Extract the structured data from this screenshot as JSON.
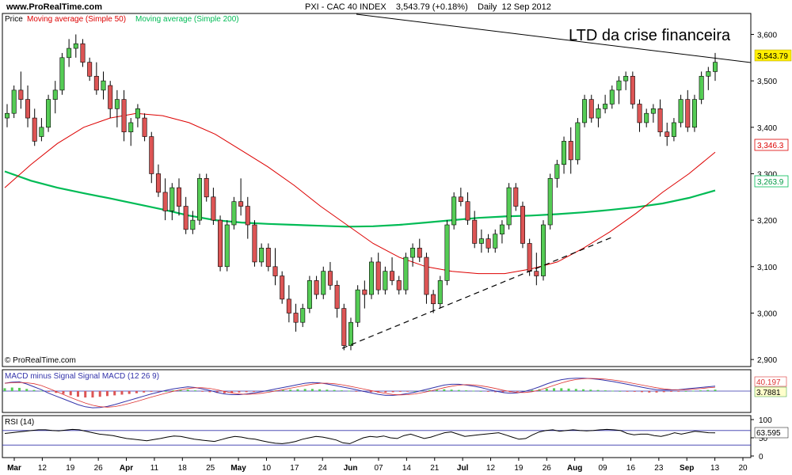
{
  "header": {
    "site": "www.ProRealTime.com",
    "title": "PXI - CAC 40 INDEX    3,543.79 (+0.18%)    Daily  12 Sep 2012"
  },
  "footer": {
    "copyright": "© ProRealTime.com"
  },
  "chart_data": {
    "type": "candlestick",
    "legend": {
      "price": "Price",
      "ma50": "Moving average (Simple 50)",
      "ma200": "Moving average (Simple 200)"
    },
    "annotation": "LTD da crise financeira",
    "price_axis": {
      "ylim": [
        2890,
        3640
      ],
      "ticks": [
        "3,600",
        "3,500",
        "3,400",
        "3,300",
        "3,200",
        "3,100",
        "3,000",
        "2,900"
      ],
      "tick_values": [
        3600,
        3500,
        3400,
        3300,
        3200,
        3100,
        3000,
        2900
      ]
    },
    "last_price": "3,543.79",
    "ma50_last": "3,346.3",
    "ma200_last": "3,263.9",
    "colors": {
      "up": "#55cc55",
      "down": "#dd5555",
      "ma50": "#dd0000",
      "ma200": "#00bb55",
      "last_price_bg": "#ffee00",
      "macd": "#3333aa",
      "signal": "#dd3333",
      "rsi": "#000000"
    },
    "x_labels": [
      "Mar",
      "12",
      "19",
      "26",
      "Apr",
      "11",
      "18",
      "25",
      "May",
      "10",
      "17",
      "24",
      "Jun",
      "07",
      "14",
      "21",
      "Jul",
      "12",
      "19",
      "26",
      "Aug",
      "09",
      "16",
      "23",
      "Sep",
      "13",
      "20"
    ],
    "x_label_bold": [
      "Mar",
      "Apr",
      "May",
      "Jun",
      "Jul",
      "Aug",
      "Sep"
    ],
    "candles": [
      [
        3420,
        3450,
        3400,
        3430
      ],
      [
        3430,
        3490,
        3420,
        3480
      ],
      [
        3480,
        3520,
        3440,
        3460
      ],
      [
        3460,
        3490,
        3400,
        3420
      ],
      [
        3420,
        3440,
        3360,
        3370
      ],
      [
        3380,
        3420,
        3370,
        3400
      ],
      [
        3400,
        3470,
        3390,
        3460
      ],
      [
        3460,
        3500,
        3430,
        3480
      ],
      [
        3480,
        3560,
        3470,
        3550
      ],
      [
        3550,
        3590,
        3530,
        3570
      ],
      [
        3570,
        3600,
        3550,
        3580
      ],
      [
        3580,
        3590,
        3530,
        3540
      ],
      [
        3540,
        3550,
        3500,
        3510
      ],
      [
        3510,
        3540,
        3470,
        3480
      ],
      [
        3480,
        3520,
        3460,
        3500
      ],
      [
        3490,
        3500,
        3420,
        3440
      ],
      [
        3440,
        3480,
        3400,
        3460
      ],
      [
        3460,
        3480,
        3370,
        3390
      ],
      [
        3390,
        3420,
        3360,
        3410
      ],
      [
        3420,
        3450,
        3400,
        3440
      ],
      [
        3420,
        3430,
        3370,
        3380
      ],
      [
        3380,
        3390,
        3280,
        3300
      ],
      [
        3300,
        3320,
        3250,
        3260
      ],
      [
        3260,
        3290,
        3200,
        3220
      ],
      [
        3220,
        3280,
        3200,
        3270
      ],
      [
        3270,
        3290,
        3210,
        3230
      ],
      [
        3230,
        3250,
        3170,
        3180
      ],
      [
        3180,
        3220,
        3170,
        3200
      ],
      [
        3200,
        3300,
        3190,
        3290
      ],
      [
        3290,
        3300,
        3240,
        3250
      ],
      [
        3250,
        3270,
        3190,
        3200
      ],
      [
        3200,
        3210,
        3090,
        3100
      ],
      [
        3100,
        3200,
        3090,
        3190
      ],
      [
        3190,
        3250,
        3180,
        3240
      ],
      [
        3240,
        3290,
        3210,
        3230
      ],
      [
        3230,
        3250,
        3160,
        3190
      ],
      [
        3190,
        3200,
        3100,
        3110
      ],
      [
        3110,
        3150,
        3100,
        3140
      ],
      [
        3140,
        3150,
        3090,
        3100
      ],
      [
        3100,
        3140,
        3060,
        3080
      ],
      [
        3080,
        3090,
        3020,
        3030
      ],
      [
        3030,
        3060,
        2980,
        3000
      ],
      [
        3000,
        3020,
        2960,
        2980
      ],
      [
        2980,
        3020,
        2970,
        3010
      ],
      [
        3010,
        3080,
        3000,
        3070
      ],
      [
        3070,
        3080,
        3030,
        3040
      ],
      [
        3040,
        3100,
        3030,
        3090
      ],
      [
        3090,
        3110,
        3050,
        3060
      ],
      [
        3060,
        3070,
        2990,
        3010
      ],
      [
        3010,
        3020,
        2920,
        2930
      ],
      [
        2930,
        2990,
        2920,
        2980
      ],
      [
        2980,
        3060,
        2970,
        3050
      ],
      [
        3050,
        3070,
        3010,
        3040
      ],
      [
        3040,
        3120,
        3030,
        3110
      ],
      [
        3110,
        3130,
        3040,
        3050
      ],
      [
        3050,
        3100,
        3040,
        3090
      ],
      [
        3090,
        3120,
        3060,
        3070
      ],
      [
        3070,
        3080,
        3040,
        3050
      ],
      [
        3050,
        3130,
        3040,
        3120
      ],
      [
        3120,
        3150,
        3100,
        3140
      ],
      [
        3140,
        3160,
        3110,
        3120
      ],
      [
        3120,
        3130,
        3020,
        3040
      ],
      [
        3040,
        3050,
        3000,
        3020
      ],
      [
        3020,
        3080,
        3010,
        3070
      ],
      [
        3070,
        3200,
        3060,
        3190
      ],
      [
        3190,
        3260,
        3180,
        3250
      ],
      [
        3250,
        3270,
        3230,
        3240
      ],
      [
        3240,
        3260,
        3190,
        3200
      ],
      [
        3200,
        3220,
        3140,
        3150
      ],
      [
        3150,
        3180,
        3130,
        3160
      ],
      [
        3160,
        3170,
        3130,
        3140
      ],
      [
        3140,
        3180,
        3130,
        3170
      ],
      [
        3170,
        3200,
        3150,
        3190
      ],
      [
        3190,
        3280,
        3180,
        3270
      ],
      [
        3270,
        3280,
        3220,
        3230
      ],
      [
        3230,
        3240,
        3140,
        3150
      ],
      [
        3150,
        3160,
        3080,
        3090
      ],
      [
        3090,
        3130,
        3060,
        3080
      ],
      [
        3080,
        3200,
        3070,
        3190
      ],
      [
        3190,
        3300,
        3180,
        3290
      ],
      [
        3290,
        3330,
        3270,
        3320
      ],
      [
        3320,
        3380,
        3300,
        3370
      ],
      [
        3370,
        3400,
        3300,
        3330
      ],
      [
        3330,
        3420,
        3320,
        3410
      ],
      [
        3410,
        3470,
        3400,
        3460
      ],
      [
        3460,
        3470,
        3410,
        3420
      ],
      [
        3420,
        3450,
        3400,
        3440
      ],
      [
        3440,
        3470,
        3430,
        3450
      ],
      [
        3450,
        3490,
        3440,
        3480
      ],
      [
        3480,
        3510,
        3450,
        3500
      ],
      [
        3500,
        3520,
        3480,
        3510
      ],
      [
        3510,
        3520,
        3440,
        3450
      ],
      [
        3450,
        3460,
        3390,
        3410
      ],
      [
        3410,
        3440,
        3400,
        3430
      ],
      [
        3430,
        3450,
        3410,
        3440
      ],
      [
        3440,
        3460,
        3380,
        3390
      ],
      [
        3390,
        3410,
        3360,
        3380
      ],
      [
        3380,
        3420,
        3370,
        3410
      ],
      [
        3410,
        3470,
        3400,
        3460
      ],
      [
        3460,
        3480,
        3390,
        3400
      ],
      [
        3400,
        3470,
        3390,
        3460
      ],
      [
        3460,
        3520,
        3450,
        3510
      ],
      [
        3510,
        3530,
        3480,
        3520
      ],
      [
        3520,
        3560,
        3500,
        3540
      ]
    ],
    "ma50": [
      3270,
      3320,
      3365,
      3400,
      3420,
      3430,
      3425,
      3410,
      3385,
      3350,
      3315,
      3275,
      3230,
      3190,
      3150,
      3120,
      3100,
      3090,
      3085,
      3085,
      3095,
      3110,
      3140,
      3175,
      3215,
      3260,
      3300,
      3346.3
    ],
    "ma200": [
      3305,
      3285,
      3270,
      3258,
      3247,
      3235,
      3223,
      3210,
      3200,
      3195,
      3192,
      3190,
      3188,
      3186,
      3187,
      3190,
      3195,
      3200,
      3205,
      3208,
      3210,
      3213,
      3217,
      3222,
      3228,
      3236,
      3248,
      3263.9
    ],
    "macd": {
      "label": "MACD minus Signal Signal MACD (12 26 9)",
      "value1": "40.197",
      "value2": "3.7881",
      "hist": [
        8,
        10,
        9,
        6,
        3,
        1,
        -2,
        -5,
        -8,
        -12,
        -16,
        -18,
        -18,
        -16,
        -14,
        -12,
        -10,
        -8,
        -6,
        -4,
        -2,
        -1,
        0,
        2,
        3,
        4,
        2,
        -1,
        -3,
        -5,
        -6,
        -5,
        -4,
        -3,
        -2,
        -1,
        1,
        2,
        3,
        4,
        5,
        6,
        6,
        5,
        4,
        3,
        2,
        1,
        -1,
        -2,
        -3,
        -4,
        -4,
        -3,
        -2,
        -1,
        0,
        2,
        3,
        4,
        5,
        4,
        3,
        2,
        1,
        0,
        -2,
        -3,
        -4,
        -3,
        -2,
        1,
        3,
        5,
        7,
        8,
        8,
        7,
        6,
        5,
        4,
        3,
        2,
        1,
        0,
        -1,
        -2,
        -3,
        -4,
        -4,
        -3,
        -2,
        -1,
        0,
        1,
        2,
        3,
        4
      ],
      "macd_line": [
        22,
        25,
        26,
        20,
        12,
        4,
        -6,
        -14,
        -22,
        -30,
        -38,
        -44,
        -47,
        -46,
        -43,
        -38,
        -32,
        -26,
        -20,
        -14,
        -8,
        -3,
        2,
        6,
        9,
        12,
        10,
        6,
        2,
        -4,
        -8,
        -10,
        -10,
        -8,
        -5,
        -2,
        2,
        6,
        10,
        14,
        18,
        22,
        24,
        23,
        20,
        16,
        12,
        8,
        4,
        -1,
        -5,
        -9,
        -12,
        -12,
        -10,
        -7,
        -3,
        2,
        7,
        12,
        17,
        19,
        19,
        17,
        14,
        10,
        5,
        0,
        -4,
        -6,
        -5,
        -1,
        5,
        12,
        20,
        27,
        32,
        35,
        36,
        36,
        35,
        33,
        30,
        27,
        23,
        19,
        15,
        11,
        7,
        4,
        3,
        3,
        4,
        6,
        8,
        10,
        12,
        14
      ]
    },
    "rsi": {
      "label": "RSI (14)",
      "value": "63.595",
      "ticks": [
        "100",
        "50",
        "0"
      ],
      "tick_values": [
        100,
        50,
        0
      ],
      "upper_line": 70,
      "lower_line": 30,
      "values": [
        62,
        64,
        66,
        68,
        70,
        72,
        72,
        70,
        69,
        71,
        73,
        72,
        68,
        64,
        60,
        58,
        56,
        52,
        48,
        46,
        44,
        42,
        45,
        48,
        52,
        55,
        54,
        50,
        46,
        44,
        42,
        40,
        45,
        50,
        54,
        52,
        48,
        46,
        42,
        38,
        35,
        34,
        36,
        40,
        46,
        50,
        54,
        52,
        48,
        44,
        36,
        34,
        42,
        50,
        54,
        52,
        55,
        50,
        48,
        56,
        60,
        54,
        48,
        52,
        58,
        64,
        66,
        60,
        54,
        56,
        58,
        60,
        62,
        64,
        58,
        52,
        46,
        48,
        58,
        66,
        70,
        72,
        68,
        70,
        72,
        70,
        69,
        70,
        72,
        73,
        72,
        70,
        62,
        58,
        60,
        60,
        56,
        54,
        58,
        64,
        60,
        64,
        68,
        66,
        64,
        63.595
      ]
    }
  }
}
